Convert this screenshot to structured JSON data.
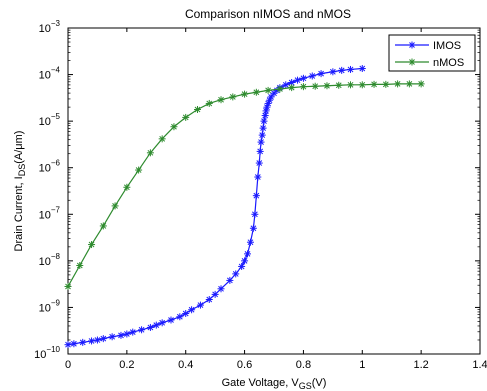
{
  "chart_data": {
    "type": "line",
    "title": "Comparison nIMOS and nMOS",
    "xlabel_main": "Gate Voltage, V",
    "xlabel_sub": "GS",
    "xlabel_unit": "(V)",
    "ylabel_main": "Drain Current, I",
    "ylabel_sub": "DS",
    "ylabel_unit": "(A/μm)",
    "xlim": [
      0,
      1.4
    ],
    "ylim_log10": [
      -10,
      -3
    ],
    "y_scale": "log",
    "x_ticks": [
      0,
      0.2,
      0.4,
      0.6,
      0.8,
      1,
      1.2,
      1.4
    ],
    "x_tick_labels": [
      "0",
      "0.2",
      "0.4",
      "0.6",
      "0.8",
      "1",
      "1.2",
      "1.4"
    ],
    "y_tick_exponents": [
      -10,
      -9,
      -8,
      -7,
      -6,
      -5,
      -4,
      -3
    ],
    "y_tick_base": "10",
    "grid": false,
    "legend_position": "top-right",
    "series": [
      {
        "name": "IMOS",
        "color": "#1a1aff",
        "marker": "asterisk",
        "x": [
          0,
          0.02,
          0.05,
          0.08,
          0.1,
          0.12,
          0.15,
          0.18,
          0.2,
          0.22,
          0.25,
          0.28,
          0.3,
          0.32,
          0.35,
          0.38,
          0.4,
          0.42,
          0.45,
          0.48,
          0.5,
          0.52,
          0.55,
          0.57,
          0.59,
          0.6,
          0.61,
          0.62,
          0.63,
          0.635,
          0.64,
          0.645,
          0.65,
          0.653,
          0.656,
          0.66,
          0.663,
          0.666,
          0.67,
          0.673,
          0.676,
          0.68,
          0.685,
          0.69,
          0.7,
          0.71,
          0.72,
          0.74,
          0.76,
          0.78,
          0.8,
          0.83,
          0.86,
          0.9,
          0.93,
          0.96,
          1.0
        ],
        "y_log10": [
          -9.8,
          -9.78,
          -9.75,
          -9.72,
          -9.7,
          -9.67,
          -9.63,
          -9.6,
          -9.57,
          -9.53,
          -9.48,
          -9.43,
          -9.38,
          -9.33,
          -9.27,
          -9.2,
          -9.13,
          -9.05,
          -8.95,
          -8.83,
          -8.72,
          -8.6,
          -8.42,
          -8.28,
          -8.12,
          -8.0,
          -7.85,
          -7.6,
          -7.3,
          -7.0,
          -6.6,
          -6.2,
          -5.9,
          -5.65,
          -5.45,
          -5.3,
          -5.15,
          -5.0,
          -4.88,
          -4.78,
          -4.7,
          -4.62,
          -4.55,
          -4.48,
          -4.4,
          -4.34,
          -4.28,
          -4.22,
          -4.17,
          -4.12,
          -4.08,
          -4.03,
          -3.98,
          -3.94,
          -3.91,
          -3.89,
          -3.87
        ]
      },
      {
        "name": "nMOS",
        "color": "#2e8b2e",
        "marker": "asterisk",
        "x": [
          0,
          0.04,
          0.08,
          0.12,
          0.16,
          0.2,
          0.24,
          0.28,
          0.32,
          0.36,
          0.4,
          0.44,
          0.48,
          0.52,
          0.56,
          0.6,
          0.64,
          0.68,
          0.72,
          0.76,
          0.8,
          0.84,
          0.88,
          0.92,
          0.96,
          1.0,
          1.04,
          1.08,
          1.12,
          1.16,
          1.2
        ],
        "y_log10": [
          -8.55,
          -8.1,
          -7.65,
          -7.25,
          -6.82,
          -6.42,
          -6.05,
          -5.68,
          -5.38,
          -5.12,
          -4.92,
          -4.75,
          -4.62,
          -4.54,
          -4.48,
          -4.42,
          -4.38,
          -4.34,
          -4.31,
          -4.28,
          -4.26,
          -4.25,
          -4.24,
          -4.23,
          -4.22,
          -4.22,
          -4.21,
          -4.21,
          -4.2,
          -4.2,
          -4.2
        ]
      }
    ]
  }
}
